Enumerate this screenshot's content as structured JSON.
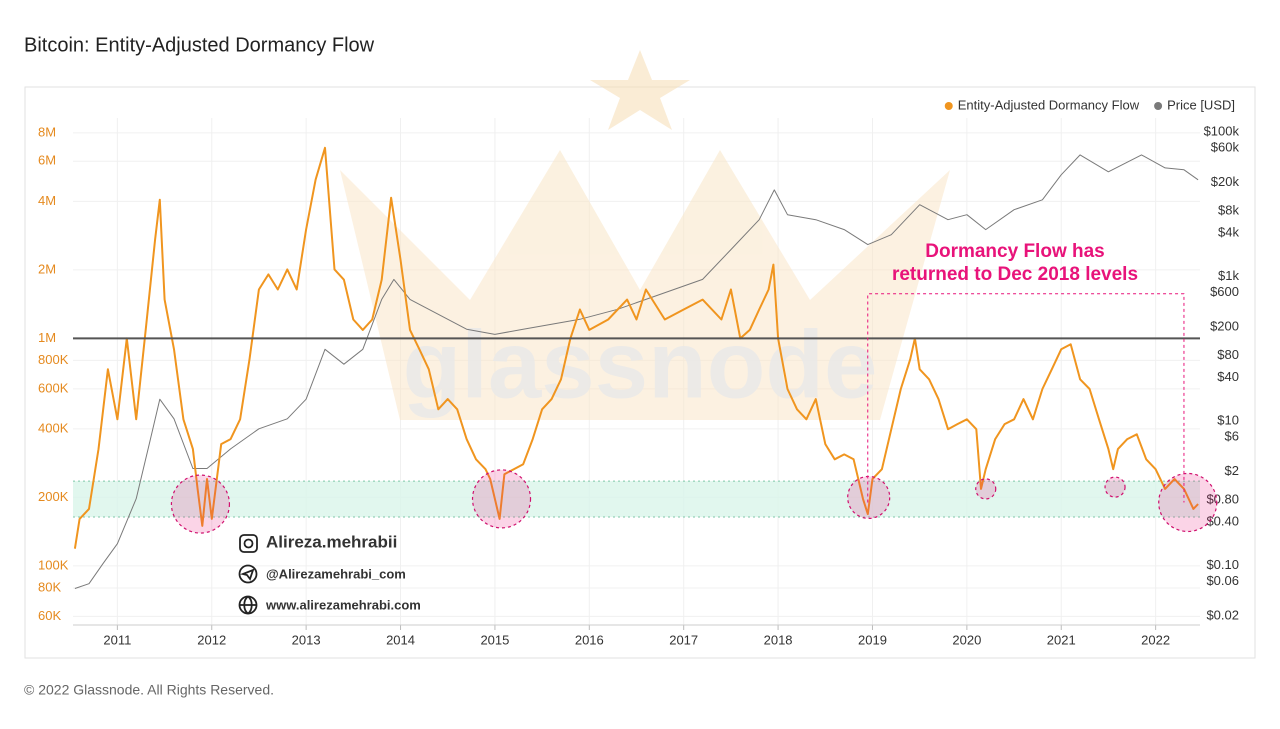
{
  "chart_data": {
    "type": "line",
    "title": "Bitcoin: Entity-Adjusted Dormancy Flow",
    "footer": "© 2022 Glassnode. All Rights Reserved.",
    "watermark": "glassnode",
    "contacts": [
      "Alireza.mehrabii",
      "@Alirezamehrabi_com",
      "www.alirezamehrabi.com"
    ],
    "log_y": true,
    "log_y2": true,
    "grid": true,
    "legend": "top-right",
    "xlim": [
      2010.53,
      2022.47
    ],
    "xticks": [
      2011,
      2012,
      2013,
      2014,
      2015,
      2016,
      2017,
      2018,
      2019,
      2020,
      2021,
      2022
    ],
    "ylim": [
      55000,
      9300000
    ],
    "yticks": [
      {
        "value": 60000,
        "label": "60K"
      },
      {
        "value": 80000,
        "label": "80K"
      },
      {
        "value": 100000,
        "label": "100K"
      },
      {
        "value": 200000,
        "label": "200K"
      },
      {
        "value": 400000,
        "label": "400K"
      },
      {
        "value": 600000,
        "label": "600K"
      },
      {
        "value": 800000,
        "label": "800K"
      },
      {
        "value": 1000000,
        "label": "1M"
      },
      {
        "value": 2000000,
        "label": "2M"
      },
      {
        "value": 4000000,
        "label": "4M"
      },
      {
        "value": 6000000,
        "label": "6M"
      },
      {
        "value": 8000000,
        "label": "8M"
      }
    ],
    "y2lim": [
      0.015,
      156000
    ],
    "y2ticks": [
      {
        "value": 0.02,
        "label": "$0.02"
      },
      {
        "value": 0.06,
        "label": "$0.06"
      },
      {
        "value": 0.1,
        "label": "$0.10"
      },
      {
        "value": 0.4,
        "label": "$0.40"
      },
      {
        "value": 0.8,
        "label": "$0.80"
      },
      {
        "value": 2,
        "label": "$2"
      },
      {
        "value": 6,
        "label": "$6"
      },
      {
        "value": 10,
        "label": "$10"
      },
      {
        "value": 40,
        "label": "$40"
      },
      {
        "value": 80,
        "label": "$80"
      },
      {
        "value": 200,
        "label": "$200"
      },
      {
        "value": 600,
        "label": "$600"
      },
      {
        "value": 1000,
        "label": "$1k"
      },
      {
        "value": 4000,
        "label": "$4k"
      },
      {
        "value": 8000,
        "label": "$8k"
      },
      {
        "value": 20000,
        "label": "$20k"
      },
      {
        "value": 60000,
        "label": "$60k"
      },
      {
        "value": 100000,
        "label": "$100k"
      }
    ],
    "hline": 1000000,
    "band": [
      164000,
      236000
    ],
    "highlights": [
      {
        "x": 2011.88,
        "y": 187000
      },
      {
        "x": 2015.07,
        "y": 197000
      },
      {
        "x": 2018.96,
        "y": 200000
      },
      {
        "x": 2020.2,
        "y": 218000
      },
      {
        "x": 2021.57,
        "y": 222000
      },
      {
        "x": 2022.34,
        "y": 190000
      }
    ],
    "annotation": {
      "text": [
        "Dormancy Flow has",
        "returned to Dec 2018 levels"
      ],
      "color": "#e8137a",
      "box_x": [
        2018.95,
        2022.3
      ],
      "box_y": [
        190000,
        1570000
      ]
    },
    "series": [
      {
        "name": "Entity-Adjusted Dormancy Flow",
        "color": "#f0951f",
        "x": [
          2010.55,
          2010.6,
          2010.7,
          2010.8,
          2010.9,
          2011.0,
          2011.1,
          2011.2,
          2011.3,
          2011.4,
          2011.45,
          2011.5,
          2011.6,
          2011.7,
          2011.8,
          2011.85,
          2011.9,
          2011.95,
          2012.0,
          2012.1,
          2012.2,
          2012.3,
          2012.4,
          2012.5,
          2012.6,
          2012.7,
          2012.8,
          2012.9,
          2013.0,
          2013.1,
          2013.2,
          2013.3,
          2013.4,
          2013.5,
          2013.6,
          2013.7,
          2013.8,
          2013.9,
          2014.0,
          2014.1,
          2014.2,
          2014.3,
          2014.4,
          2014.5,
          2014.6,
          2014.7,
          2014.8,
          2014.9,
          2014.95,
          2015.05,
          2015.1,
          2015.2,
          2015.3,
          2015.4,
          2015.5,
          2015.6,
          2015.7,
          2015.8,
          2015.9,
          2016.0,
          2016.2,
          2016.4,
          2016.5,
          2016.6,
          2016.8,
          2017.0,
          2017.2,
          2017.4,
          2017.5,
          2017.6,
          2017.7,
          2017.8,
          2017.9,
          2017.95,
          2018.0,
          2018.1,
          2018.2,
          2018.3,
          2018.4,
          2018.5,
          2018.6,
          2018.7,
          2018.8,
          2018.9,
          2018.95,
          2019.0,
          2019.1,
          2019.2,
          2019.3,
          2019.4,
          2019.45,
          2019.5,
          2019.6,
          2019.7,
          2019.8,
          2019.9,
          2020.0,
          2020.1,
          2020.15,
          2020.2,
          2020.3,
          2020.4,
          2020.5,
          2020.6,
          2020.7,
          2020.8,
          2020.9,
          2021.0,
          2021.1,
          2021.2,
          2021.3,
          2021.4,
          2021.5,
          2021.55,
          2021.6,
          2021.7,
          2021.8,
          2021.9,
          2022.0,
          2022.1,
          2022.2,
          2022.3,
          2022.4,
          2022.45
        ],
        "values": [
          119000,
          161000,
          178000,
          326000,
          731000,
          441000,
          1000000,
          441000,
          1090000,
          2720000,
          4070000,
          1480000,
          895000,
          441000,
          326000,
          218000,
          150000,
          241000,
          161000,
          343000,
          361000,
          441000,
          809000,
          1640000,
          1910000,
          1640000,
          2010000,
          1640000,
          3010000,
          4980000,
          6880000,
          2010000,
          1810000,
          1210000,
          1090000,
          1210000,
          1810000,
          4150000,
          2220000,
          1090000,
          895000,
          731000,
          488000,
          541000,
          488000,
          361000,
          294000,
          266000,
          241000,
          161000,
          253000,
          266000,
          280000,
          361000,
          488000,
          541000,
          661000,
          1000000,
          1340000,
          1090000,
          1210000,
          1480000,
          1210000,
          1640000,
          1210000,
          1340000,
          1480000,
          1210000,
          1640000,
          1000000,
          1090000,
          1340000,
          1640000,
          2110000,
          1000000,
          599000,
          488000,
          441000,
          541000,
          343000,
          294000,
          309000,
          294000,
          197000,
          169000,
          241000,
          266000,
          399000,
          599000,
          809000,
          1000000,
          731000,
          661000,
          541000,
          399000,
          420000,
          441000,
          399000,
          218000,
          266000,
          361000,
          420000,
          441000,
          541000,
          441000,
          599000,
          731000,
          895000,
          942000,
          661000,
          599000,
          441000,
          326000,
          266000,
          326000,
          361000,
          379000,
          294000,
          266000,
          218000,
          241000,
          218000,
          178000,
          187000
        ]
      },
      {
        "name": "Price [USD]",
        "color": "#7a7a7a",
        "axis": "y2",
        "x": [
          2010.55,
          2010.7,
          2010.85,
          2011.0,
          2011.2,
          2011.35,
          2011.45,
          2011.6,
          2011.8,
          2011.95,
          2012.2,
          2012.5,
          2012.8,
          2013.0,
          2013.2,
          2013.4,
          2013.6,
          2013.8,
          2013.93,
          2014.1,
          2014.4,
          2014.7,
          2015.0,
          2015.3,
          2015.6,
          2015.9,
          2016.3,
          2016.6,
          2016.9,
          2017.2,
          2017.5,
          2017.8,
          2017.96,
          2018.1,
          2018.4,
          2018.7,
          2018.95,
          2019.2,
          2019.5,
          2019.8,
          2020.0,
          2020.2,
          2020.5,
          2020.8,
          2021.0,
          2021.2,
          2021.5,
          2021.85,
          2022.1,
          2022.3,
          2022.45
        ],
        "values": [
          0.048,
          0.056,
          0.107,
          0.2,
          0.84,
          5.6,
          20,
          10.7,
          2.2,
          2.2,
          4.1,
          7.8,
          10.7,
          20,
          98,
          61,
          98,
          482,
          910,
          482,
          299,
          186,
          158,
          186,
          218,
          255,
          351,
          482,
          662,
          910,
          2354,
          6110,
          15800,
          7160,
          6110,
          4450,
          2760,
          3790,
          9840,
          6110,
          7160,
          4450,
          8400,
          11500,
          25500,
          48200,
          28100,
          48200,
          31800,
          29900,
          21800
        ]
      }
    ]
  }
}
